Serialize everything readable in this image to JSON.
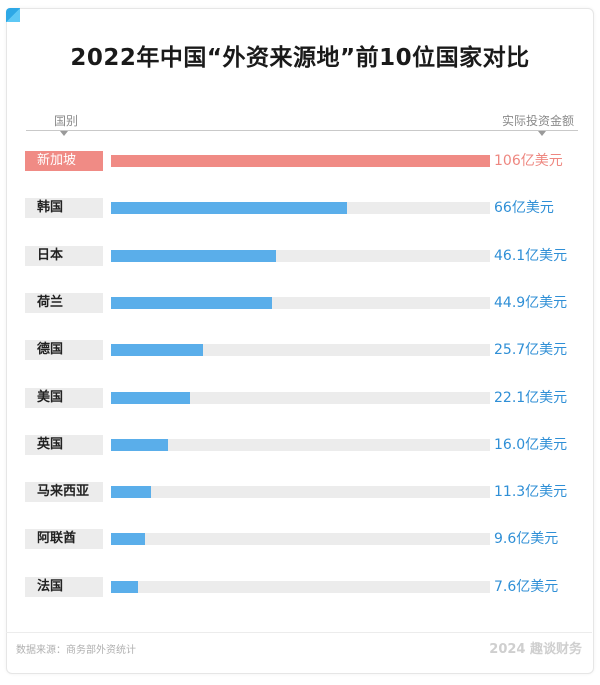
{
  "title": "2022年中国“外资来源地”前10位国家对比",
  "header": {
    "left": "国别",
    "right": "实际投资金额"
  },
  "source": "数据来源：商务部外资统计",
  "brand": "2024 趣谈财务",
  "colors": {
    "highlight": "#f08b85",
    "bar": "#5aaeea",
    "track": "#ececec",
    "value_blue": "#2f8fd6",
    "value_red": "#ee8780"
  },
  "chart_data": {
    "type": "bar",
    "orientation": "horizontal",
    "title": "2022年中国“外资来源地”前10位国家对比",
    "xlabel": "实际投资金额",
    "ylabel": "国别",
    "unit": "亿美元",
    "xlim": [
      0,
      106
    ],
    "categories": [
      "新加坡",
      "韩国",
      "日本",
      "荷兰",
      "德国",
      "美国",
      "英国",
      "马来西亚",
      "阿联酋",
      "法国"
    ],
    "values": [
      106,
      66,
      46.1,
      44.9,
      25.7,
      22.1,
      16.0,
      11.3,
      9.6,
      7.6
    ],
    "value_labels": [
      "106亿美元",
      "66亿美元",
      "46.1亿美元",
      "44.9亿美元",
      "25.7亿美元",
      "22.1亿美元",
      "16.0亿美元",
      "11.3亿美元",
      "9.6亿美元",
      "7.6亿美元"
    ],
    "highlight": "新加坡"
  }
}
